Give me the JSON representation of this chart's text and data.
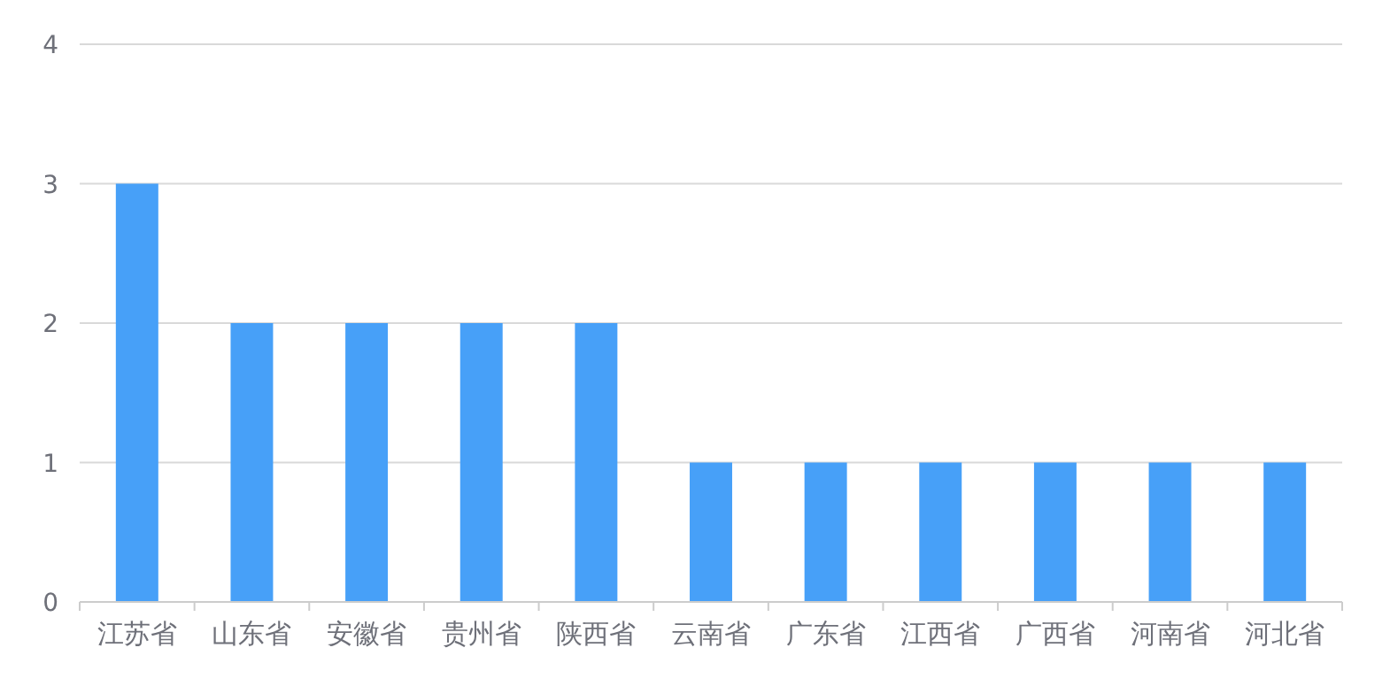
{
  "chart_data": {
    "type": "bar",
    "categories": [
      "江苏省",
      "山东省",
      "安徽省",
      "贵州省",
      "陕西省",
      "云南省",
      "广东省",
      "江西省",
      "广西省",
      "河南省",
      "河北省"
    ],
    "values": [
      3,
      2,
      2,
      2,
      2,
      1,
      1,
      1,
      1,
      1,
      1
    ],
    "color": "#47a0f8",
    "ylim": [
      0,
      4
    ],
    "yticks": [
      0,
      1,
      2,
      3,
      4
    ],
    "grid": "y"
  }
}
